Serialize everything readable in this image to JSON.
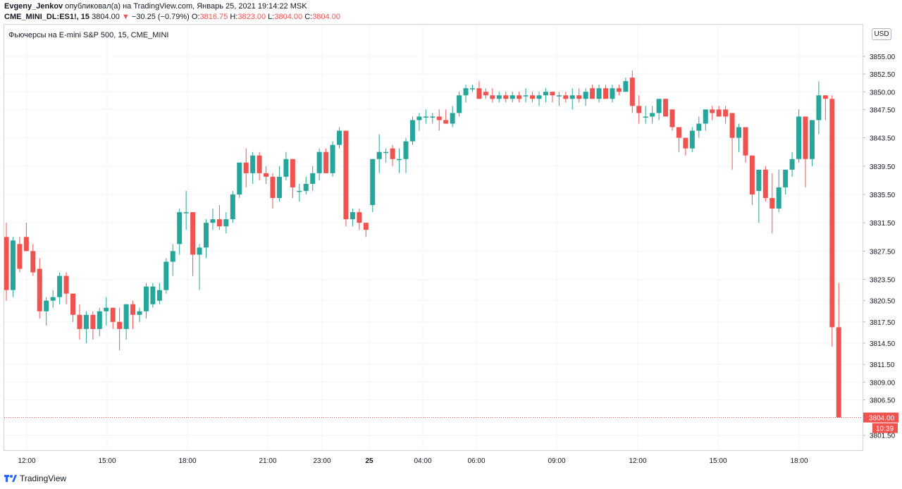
{
  "header": {
    "author": "Evgeny_Jenkov",
    "published_text": "опубликовал(а) на TradingView.com, Январь 25, 2021 19:14:22 MSK",
    "symbol": "CME_MINI_DL:ES1!, 15",
    "last": "3804.00",
    "change": "−30.25 (−0.79%)",
    "o_label": "O:",
    "o": "3816.75",
    "h_label": "H:",
    "h": "3823.00",
    "l_label": "L:",
    "l": "3804.00",
    "c_label": "C:",
    "c": "3804.00"
  },
  "instrument_title": "Фьючерсы на E-mini S&P 500, 15, CME_MINI",
  "currency": "USD",
  "footer_brand": "TradingView",
  "colors": {
    "up": "#26a69a",
    "down": "#ef5350",
    "grid": "#f0f3fa",
    "axis_text": "#131722"
  },
  "chart_data": {
    "type": "candlestick",
    "interval_minutes": 15,
    "y_ticks": [
      "3855.00",
      "3852.50",
      "3850.00",
      "3847.50",
      "3843.50",
      "3839.50",
      "3835.50",
      "3831.50",
      "3827.50",
      "3823.50",
      "3820.50",
      "3817.50",
      "3814.50",
      "3811.50",
      "3809.00",
      "3806.50",
      "3801.50"
    ],
    "x_ticks": [
      "12:00",
      "15:00",
      "18:00",
      "21:00",
      "23:00",
      "25",
      "04:00",
      "06:00",
      "09:00",
      "12:00",
      "15:00",
      "18:00"
    ],
    "last_price": "3804.00",
    "countdown": "10:39",
    "ylim": [
      3799,
      3860
    ],
    "candles": [
      [
        3829.5,
        3831.5,
        3820.5,
        3822.0
      ],
      [
        3822.0,
        3829.5,
        3821.0,
        3829.0
      ],
      [
        3828.5,
        3829.5,
        3824.5,
        3825.0
      ],
      [
        3829.5,
        3831.5,
        3827.5,
        3827.5
      ],
      [
        3827.5,
        3828.5,
        3824.0,
        3824.5
      ],
      [
        3825.0,
        3826.5,
        3818.0,
        3819.0
      ],
      [
        3819.0,
        3821.0,
        3817.0,
        3820.5
      ],
      [
        3820.5,
        3822.0,
        3819.5,
        3821.0
      ],
      [
        3821.0,
        3824.5,
        3820.0,
        3824.0
      ],
      [
        3824.0,
        3824.5,
        3820.0,
        3821.5
      ],
      [
        3821.5,
        3821.5,
        3817.5,
        3818.5
      ],
      [
        3818.5,
        3820.0,
        3815.0,
        3816.5
      ],
      [
        3816.5,
        3819.0,
        3814.5,
        3818.5
      ],
      [
        3818.5,
        3819.0,
        3815.0,
        3816.5
      ],
      [
        3816.5,
        3819.5,
        3815.5,
        3819.0
      ],
      [
        3819.0,
        3821.0,
        3817.0,
        3819.5
      ],
      [
        3819.5,
        3819.5,
        3816.5,
        3817.5
      ],
      [
        3817.5,
        3819.5,
        3813.5,
        3816.5
      ],
      [
        3816.5,
        3820.0,
        3815.0,
        3820.0
      ],
      [
        3820.0,
        3820.5,
        3816.5,
        3818.5
      ],
      [
        3818.5,
        3819.5,
        3817.5,
        3819.0
      ],
      [
        3819.0,
        3823.0,
        3818.0,
        3822.5
      ],
      [
        3820.0,
        3823.0,
        3819.5,
        3822.5
      ],
      [
        3820.5,
        3823.0,
        3820.0,
        3822.0
      ],
      [
        3822.0,
        3826.5,
        3821.5,
        3826.0
      ],
      [
        3826.0,
        3828.5,
        3824.0,
        3827.5
      ],
      [
        3828.5,
        3833.5,
        3827.0,
        3833.0
      ],
      [
        3833.0,
        3836.0,
        3830.5,
        3833.0
      ],
      [
        3833.0,
        3833.0,
        3824.0,
        3827.0
      ],
      [
        3827.0,
        3828.5,
        3822.0,
        3828.0
      ],
      [
        3828.0,
        3832.0,
        3826.5,
        3831.5
      ],
      [
        3831.5,
        3833.5,
        3830.5,
        3832.0
      ],
      [
        3832.0,
        3834.0,
        3830.5,
        3831.0
      ],
      [
        3831.0,
        3833.0,
        3830.0,
        3832.0
      ],
      [
        3832.0,
        3836.0,
        3831.5,
        3835.5
      ],
      [
        3835.5,
        3840.0,
        3835.0,
        3840.0
      ],
      [
        3840.0,
        3842.0,
        3836.5,
        3838.5
      ],
      [
        3838.5,
        3841.5,
        3837.0,
        3841.0
      ],
      [
        3841.0,
        3841.5,
        3837.5,
        3838.5
      ],
      [
        3838.5,
        3839.5,
        3837.0,
        3838.0
      ],
      [
        3838.0,
        3838.5,
        3833.5,
        3835.0
      ],
      [
        3835.0,
        3839.5,
        3834.5,
        3838.0
      ],
      [
        3838.0,
        3841.5,
        3837.5,
        3840.5
      ],
      [
        3840.5,
        3840.5,
        3835.0,
        3836.5
      ],
      [
        3836.0,
        3837.0,
        3834.5,
        3836.0
      ],
      [
        3836.0,
        3838.0,
        3835.5,
        3837.0
      ],
      [
        3837.0,
        3839.5,
        3836.0,
        3838.5
      ],
      [
        3838.5,
        3842.0,
        3837.5,
        3841.5
      ],
      [
        3841.5,
        3842.0,
        3838.5,
        3838.5
      ],
      [
        3838.5,
        3843.0,
        3838.0,
        3842.5
      ],
      [
        3842.5,
        3845.0,
        3842.0,
        3844.5
      ],
      [
        3844.5,
        3844.5,
        3831.0,
        3832.0
      ],
      [
        3832.0,
        3833.5,
        3831.0,
        3833.0
      ],
      [
        3833.0,
        3833.5,
        3830.5,
        3831.5
      ],
      [
        3831.5,
        3831.5,
        3829.5,
        3830.5
      ],
      [
        3834.0,
        3840.5,
        3833.0,
        3840.5
      ],
      [
        3840.5,
        3844.0,
        3838.5,
        3841.5
      ],
      [
        3841.5,
        3842.0,
        3840.0,
        3841.5
      ],
      [
        3842.0,
        3842.5,
        3839.5,
        3840.5
      ],
      [
        3840.5,
        3842.0,
        3838.5,
        3840.5
      ],
      [
        3840.5,
        3843.5,
        3838.5,
        3843.0
      ],
      [
        3843.0,
        3846.5,
        3842.5,
        3846.0
      ],
      [
        3846.0,
        3847.0,
        3844.5,
        3846.5
      ],
      [
        3846.5,
        3847.5,
        3845.5,
        3846.5
      ],
      [
        3846.5,
        3847.0,
        3845.5,
        3846.5
      ],
      [
        3846.5,
        3847.5,
        3844.5,
        3846.0
      ],
      [
        3846.0,
        3847.5,
        3845.5,
        3845.5
      ],
      [
        3845.5,
        3848.0,
        3845.0,
        3847.0
      ],
      [
        3847.0,
        3850.0,
        3846.5,
        3849.5
      ],
      [
        3849.5,
        3851.0,
        3848.5,
        3850.5
      ],
      [
        3850.5,
        3851.0,
        3850.0,
        3850.5
      ],
      [
        3850.5,
        3851.5,
        3849.0,
        3849.0
      ],
      [
        3850.0,
        3850.5,
        3849.0,
        3849.5
      ],
      [
        3849.5,
        3850.5,
        3848.5,
        3849.0
      ],
      [
        3849.0,
        3850.0,
        3848.5,
        3849.5
      ],
      [
        3849.5,
        3850.0,
        3848.5,
        3849.0
      ],
      [
        3849.0,
        3850.0,
        3848.5,
        3849.5
      ],
      [
        3849.5,
        3850.0,
        3848.5,
        3849.0
      ],
      [
        3849.5,
        3850.5,
        3848.5,
        3849.5
      ],
      [
        3849.5,
        3850.0,
        3848.5,
        3849.0
      ],
      [
        3849.0,
        3850.0,
        3848.0,
        3849.5
      ],
      [
        3849.5,
        3850.5,
        3848.5,
        3850.0
      ],
      [
        3850.0,
        3850.0,
        3848.5,
        3849.5
      ],
      [
        3849.5,
        3850.0,
        3848.0,
        3849.5
      ],
      [
        3849.5,
        3850.0,
        3848.5,
        3849.0
      ],
      [
        3849.0,
        3850.5,
        3847.5,
        3849.5
      ],
      [
        3849.5,
        3850.5,
        3848.5,
        3849.0
      ],
      [
        3849.0,
        3850.5,
        3848.0,
        3850.0
      ],
      [
        3850.5,
        3851.0,
        3849.0,
        3849.0
      ],
      [
        3849.0,
        3851.0,
        3848.5,
        3850.5
      ],
      [
        3850.5,
        3851.0,
        3849.0,
        3849.0
      ],
      [
        3849.0,
        3851.0,
        3848.5,
        3850.5
      ],
      [
        3850.5,
        3851.0,
        3849.5,
        3850.0
      ],
      [
        3850.0,
        3852.0,
        3850.0,
        3851.5
      ],
      [
        3852.0,
        3853.0,
        3847.0,
        3848.0
      ],
      [
        3848.0,
        3849.5,
        3845.5,
        3847.0
      ],
      [
        3846.5,
        3848.0,
        3845.5,
        3846.5
      ],
      [
        3846.5,
        3848.0,
        3845.5,
        3847.0
      ],
      [
        3847.0,
        3849.0,
        3846.0,
        3849.0
      ],
      [
        3849.0,
        3849.0,
        3846.5,
        3846.5
      ],
      [
        3847.5,
        3847.5,
        3844.5,
        3845.0
      ],
      [
        3845.0,
        3845.0,
        3841.5,
        3843.5
      ],
      [
        3843.5,
        3843.5,
        3841.0,
        3842.0
      ],
      [
        3842.0,
        3845.0,
        3841.5,
        3844.5
      ],
      [
        3844.5,
        3846.5,
        3843.5,
        3845.5
      ],
      [
        3845.5,
        3847.5,
        3844.5,
        3847.5
      ],
      [
        3847.5,
        3848.0,
        3846.0,
        3847.0
      ],
      [
        3847.5,
        3848.0,
        3846.5,
        3846.5
      ],
      [
        3847.5,
        3848.0,
        3845.5,
        3846.5
      ],
      [
        3847.0,
        3847.0,
        3839.0,
        3843.5
      ],
      [
        3843.5,
        3845.5,
        3841.5,
        3845.0
      ],
      [
        3845.0,
        3845.0,
        3840.0,
        3841.0
      ],
      [
        3841.0,
        3841.0,
        3834.0,
        3835.5
      ],
      [
        3836.0,
        3838.5,
        3831.5,
        3839.0
      ],
      [
        3839.0,
        3839.5,
        3834.5,
        3835.0
      ],
      [
        3835.0,
        3838.5,
        3830.0,
        3833.5
      ],
      [
        3833.5,
        3839.0,
        3833.0,
        3836.5
      ],
      [
        3836.5,
        3839.0,
        3835.5,
        3839.0
      ],
      [
        3839.0,
        3841.5,
        3838.0,
        3840.5
      ],
      [
        3840.5,
        3847.5,
        3840.0,
        3846.5
      ],
      [
        3846.5,
        3846.5,
        3836.5,
        3840.5
      ],
      [
        3840.5,
        3846.0,
        3839.5,
        3846.0
      ],
      [
        3846.0,
        3851.5,
        3844.0,
        3849.5
      ],
      [
        3849.5,
        3849.5,
        3846.0,
        3849.0
      ],
      [
        3849.0,
        3849.5,
        3814.0,
        3816.75
      ],
      [
        3816.75,
        3823.0,
        3804.0,
        3804.0
      ]
    ]
  }
}
